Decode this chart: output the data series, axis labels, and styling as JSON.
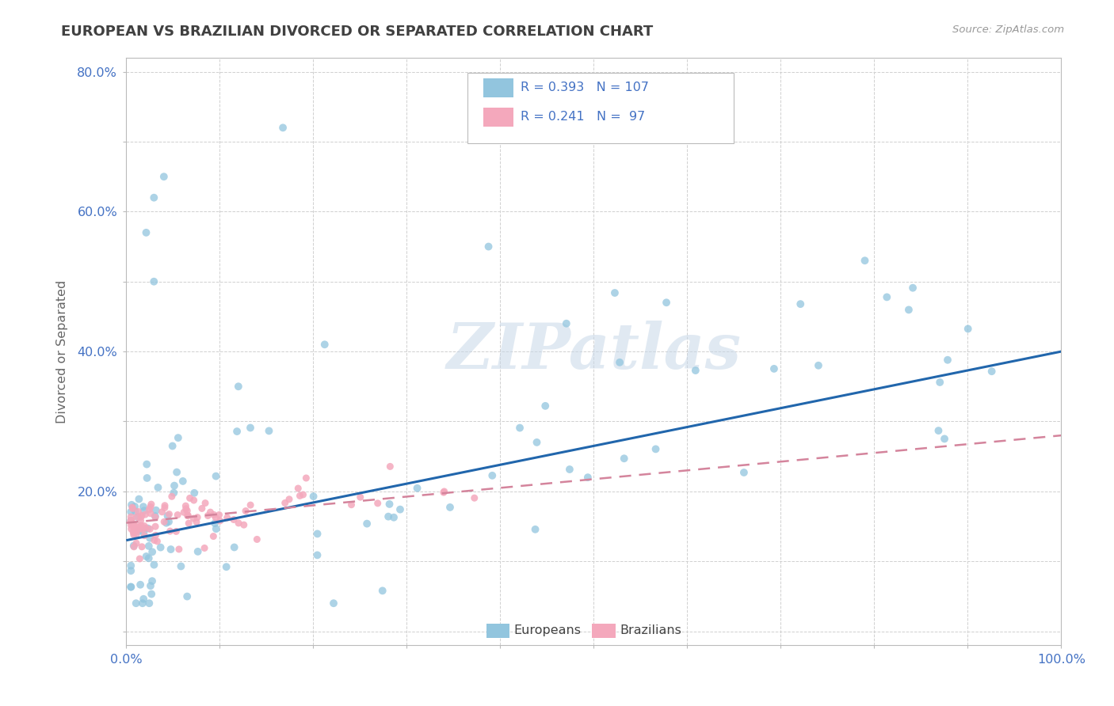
{
  "title": "EUROPEAN VS BRAZILIAN DIVORCED OR SEPARATED CORRELATION CHART",
  "source": "Source: ZipAtlas.com",
  "ylabel": "Divorced or Separated",
  "xlim": [
    0.0,
    1.0
  ],
  "ylim": [
    -0.02,
    0.82
  ],
  "xtick_positions": [
    0.0,
    0.1,
    0.2,
    0.3,
    0.4,
    0.5,
    0.6,
    0.7,
    0.8,
    0.9,
    1.0
  ],
  "ytick_positions": [
    0.0,
    0.1,
    0.2,
    0.3,
    0.4,
    0.5,
    0.6,
    0.7,
    0.8
  ],
  "xtick_labels": [
    "0.0%",
    "",
    "",
    "",
    "",
    "",
    "",
    "",
    "",
    "",
    "100.0%"
  ],
  "ytick_labels": [
    "",
    "",
    "20.0%",
    "",
    "40.0%",
    "",
    "60.0%",
    "",
    "80.0%"
  ],
  "european_color": "#92c5de",
  "brazilian_color": "#f4a8bc",
  "european_line_color": "#2166ac",
  "brazilian_line_color": "#d4849c",
  "r_european": 0.393,
  "n_european": 107,
  "r_brazilian": 0.241,
  "n_brazilian": 97,
  "watermark": "ZIPatlas",
  "background_color": "#ffffff",
  "grid_color": "#d0d0d0",
  "title_color": "#404040",
  "axis_label_color": "#666666",
  "tick_color": "#4472c4",
  "legend_r_color": "#4472c4",
  "eu_line_start_y": 0.13,
  "eu_line_end_y": 0.4,
  "br_line_start_y": 0.155,
  "br_line_end_y": 0.28
}
